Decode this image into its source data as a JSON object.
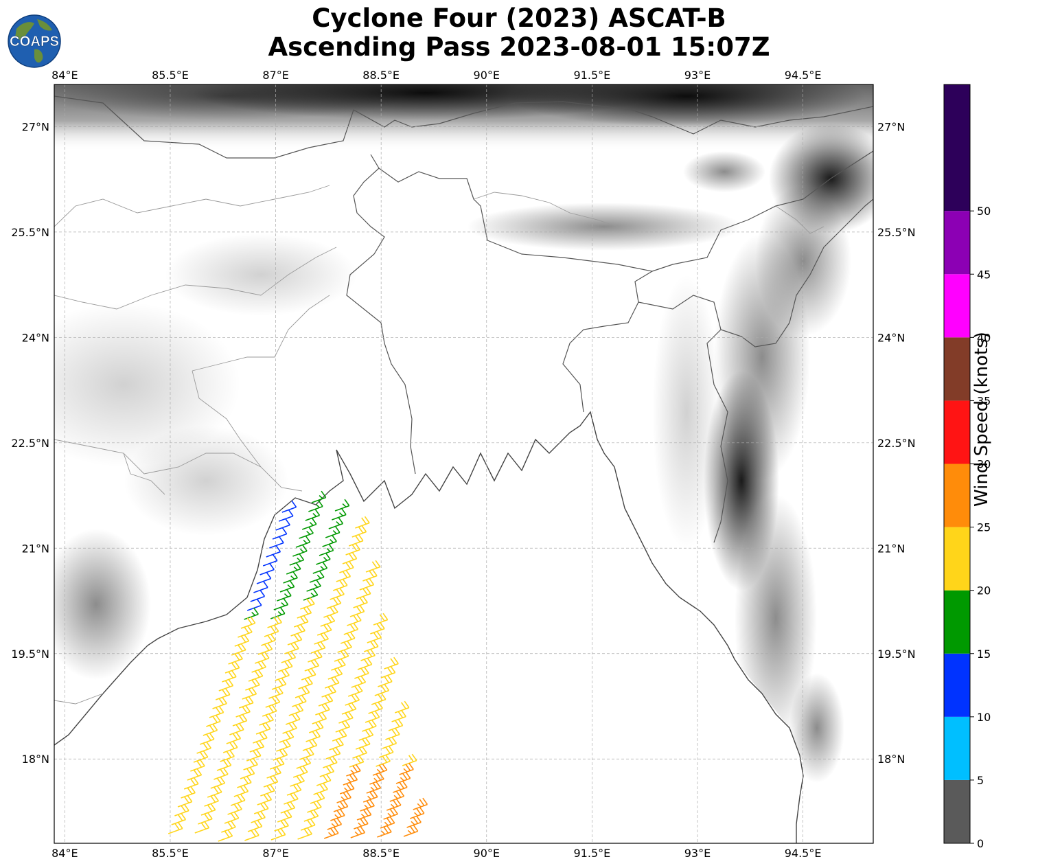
{
  "title": {
    "line1": "Cyclone Four (2023) ASCAT-B",
    "line2": "Ascending Pass 2023-08-01 15:07Z"
  },
  "logo": {
    "text": "COAPS",
    "icon": "globe-logo-icon",
    "ocean_color": "#1f5fb0",
    "land_color": "#6a8f3a"
  },
  "map": {
    "projection": "plate-carree",
    "lon_range": [
      83.85,
      95.5
    ],
    "lat_range": [
      16.8,
      27.6
    ],
    "lon_ticks": [
      "84°E",
      "85.5°E",
      "87°E",
      "88.5°E",
      "90°E",
      "91.5°E",
      "93°E",
      "94.5°E"
    ],
    "lat_ticks": [
      "27°N",
      "25.5°N",
      "24°N",
      "22.5°N",
      "21°N",
      "19.5°N",
      "18°N"
    ],
    "lon_tick_values": [
      84,
      85.5,
      87,
      88.5,
      90,
      91.5,
      93,
      94.5
    ],
    "lat_tick_values": [
      27,
      25.5,
      24,
      22.5,
      21,
      19.5,
      18
    ],
    "gridlines": true,
    "background": "grayscale terrain elevation",
    "coastline_color": "#444444",
    "border_color": "#999999"
  },
  "colorbar": {
    "label": "Wind Speed (knots)",
    "ticks": [
      "0",
      "5",
      "10",
      "15",
      "20",
      "25",
      "30",
      "35",
      "40",
      "45",
      "50"
    ],
    "tick_values": [
      0,
      5,
      10,
      15,
      20,
      25,
      30,
      35,
      40,
      45,
      50
    ],
    "max": 60,
    "bins": [
      {
        "min": 0,
        "max": 5,
        "color": "#5a5a5a"
      },
      {
        "min": 5,
        "max": 10,
        "color": "#00bfff"
      },
      {
        "min": 10,
        "max": 15,
        "color": "#0033ff"
      },
      {
        "min": 15,
        "max": 20,
        "color": "#009900"
      },
      {
        "min": 20,
        "max": 25,
        "color": "#ffd51a"
      },
      {
        "min": 25,
        "max": 30,
        "color": "#ff8c0a"
      },
      {
        "min": 30,
        "max": 35,
        "color": "#ff1414"
      },
      {
        "min": 35,
        "max": 40,
        "color": "#823c28"
      },
      {
        "min": 40,
        "max": 45,
        "color": "#ff00ff"
      },
      {
        "min": 45,
        "max": 50,
        "color": "#8c00b4"
      },
      {
        "min": 50,
        "max": 60,
        "color": "#2d005a"
      }
    ]
  }
}
